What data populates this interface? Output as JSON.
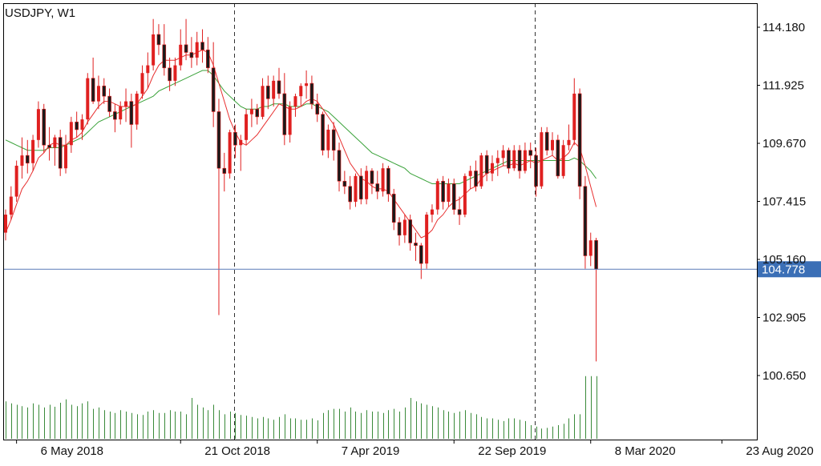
{
  "chart_data": {
    "type": "candlestick",
    "title": "USDJPY, W1",
    "symbol": "USDJPY",
    "timeframe": "W1",
    "current_price": 104.778,
    "current_price_label": "104.778",
    "price_axis": {
      "ylim": [
        99.3,
        115.38
      ],
      "ticks": [
        "114.180",
        "111.925",
        "109.670",
        "107.415",
        "105.160",
        "102.905",
        "100.650"
      ]
    },
    "time_axis": {
      "labels": [
        "6 May 2018",
        "21 Oct 2018",
        "7 Apr 2019",
        "22 Sep 2019",
        "8 Mar 2020",
        "23 Aug 2020"
      ]
    },
    "period_separators": true,
    "grid": false,
    "colors": {
      "bull_wick": "#e02020",
      "bull_body": "#e02020",
      "bear_body": "#1a1a1a",
      "ma_fast": "#e83030",
      "ma_slow": "#3aa23a",
      "volume": "#3a8a3a",
      "price_line": "#5a7ab8",
      "price_label_bg": "#3b6fb6",
      "axis": "#000000"
    },
    "series": {
      "ohlc": [
        [
          106.2,
          107.1,
          105.9,
          106.9
        ],
        [
          106.9,
          108.0,
          106.7,
          107.6
        ],
        [
          107.6,
          109.0,
          107.4,
          108.8
        ],
        [
          108.8,
          109.9,
          108.3,
          109.2
        ],
        [
          109.2,
          109.8,
          108.5,
          108.9
        ],
        [
          108.9,
          110.0,
          108.6,
          109.8
        ],
        [
          109.8,
          111.3,
          109.5,
          111.0
        ],
        [
          111.0,
          111.2,
          109.3,
          109.6
        ],
        [
          109.6,
          110.3,
          109.0,
          109.5
        ],
        [
          109.5,
          110.0,
          108.8,
          109.9
        ],
        [
          109.9,
          110.2,
          108.4,
          108.7
        ],
        [
          108.7,
          110.0,
          108.5,
          109.6
        ],
        [
          109.6,
          110.7,
          109.3,
          110.5
        ],
        [
          110.5,
          110.9,
          109.9,
          110.2
        ],
        [
          110.2,
          110.8,
          109.8,
          110.6
        ],
        [
          110.6,
          112.4,
          110.4,
          112.2
        ],
        [
          112.2,
          113.0,
          111.2,
          111.3
        ],
        [
          111.3,
          112.3,
          111.0,
          111.9
        ],
        [
          111.9,
          112.2,
          111.2,
          111.5
        ],
        [
          111.5,
          111.8,
          110.7,
          110.9
        ],
        [
          110.9,
          111.2,
          110.1,
          110.6
        ],
        [
          110.6,
          111.3,
          110.4,
          111.1
        ],
        [
          111.1,
          111.8,
          110.5,
          111.3
        ],
        [
          111.3,
          111.6,
          109.5,
          110.4
        ],
        [
          110.4,
          111.7,
          110.2,
          111.6
        ],
        [
          111.6,
          112.7,
          111.4,
          112.4
        ],
        [
          112.4,
          113.2,
          111.8,
          112.7
        ],
        [
          112.7,
          114.5,
          112.5,
          113.9
        ],
        [
          113.9,
          114.3,
          113.1,
          113.5
        ],
        [
          113.5,
          114.3,
          112.3,
          112.6
        ],
        [
          112.6,
          113.0,
          111.7,
          112.1
        ],
        [
          112.1,
          113.0,
          111.9,
          112.7
        ],
        [
          112.7,
          114.1,
          112.5,
          113.5
        ],
        [
          113.5,
          114.5,
          112.9,
          113.2
        ],
        [
          113.2,
          113.8,
          112.6,
          113.0
        ],
        [
          113.0,
          114.0,
          112.7,
          113.6
        ],
        [
          113.6,
          114.1,
          112.8,
          113.3
        ],
        [
          113.3,
          113.8,
          112.4,
          112.6
        ],
        [
          112.6,
          113.6,
          110.3,
          110.9
        ],
        [
          110.9,
          111.4,
          103.0,
          108.7
        ],
        [
          108.7,
          109.3,
          107.8,
          108.5
        ],
        [
          108.5,
          110.2,
          108.3,
          110.1
        ],
        [
          110.1,
          110.4,
          109.1,
          109.6
        ],
        [
          109.6,
          110.0,
          108.6,
          109.8
        ],
        [
          109.8,
          111.0,
          109.6,
          110.8
        ],
        [
          110.8,
          111.4,
          110.3,
          111.0
        ],
        [
          111.0,
          111.2,
          110.4,
          110.7
        ],
        [
          110.7,
          112.2,
          110.6,
          111.9
        ],
        [
          111.9,
          112.3,
          111.0,
          111.4
        ],
        [
          111.4,
          112.3,
          111.1,
          112.1
        ],
        [
          112.1,
          112.6,
          111.4,
          111.6
        ],
        [
          111.6,
          112.4,
          109.6,
          110.0
        ],
        [
          110.0,
          111.3,
          109.7,
          111.1
        ],
        [
          111.1,
          111.6,
          110.7,
          111.5
        ],
        [
          111.5,
          112.0,
          111.1,
          111.9
        ],
        [
          111.9,
          112.5,
          111.4,
          112.0
        ],
        [
          112.0,
          112.3,
          111.0,
          111.2
        ],
        [
          111.2,
          111.6,
          110.5,
          110.8
        ],
        [
          110.8,
          110.9,
          109.2,
          109.4
        ],
        [
          109.4,
          110.4,
          109.1,
          110.2
        ],
        [
          110.2,
          110.5,
          109.0,
          109.4
        ],
        [
          109.4,
          109.7,
          107.8,
          108.2
        ],
        [
          108.2,
          108.6,
          107.7,
          108.0
        ],
        [
          108.0,
          108.4,
          107.1,
          107.4
        ],
        [
          107.4,
          108.5,
          107.2,
          108.4
        ],
        [
          108.4,
          108.7,
          107.3,
          107.5
        ],
        [
          107.5,
          108.8,
          107.3,
          108.6
        ],
        [
          108.6,
          108.7,
          107.7,
          108.1
        ],
        [
          108.1,
          108.6,
          107.5,
          107.8
        ],
        [
          107.8,
          108.9,
          107.6,
          108.7
        ],
        [
          108.7,
          108.8,
          107.4,
          107.7
        ],
        [
          107.7,
          107.9,
          106.3,
          106.6
        ],
        [
          106.6,
          106.8,
          105.7,
          106.1
        ],
        [
          106.1,
          106.9,
          105.8,
          106.7
        ],
        [
          106.7,
          106.9,
          105.5,
          105.8
        ],
        [
          105.8,
          106.2,
          105.1,
          105.7
        ],
        [
          105.7,
          105.8,
          104.4,
          105.0
        ],
        [
          105.0,
          107.0,
          104.8,
          106.9
        ],
        [
          106.9,
          107.3,
          106.6,
          107.1
        ],
        [
          107.1,
          108.3,
          106.9,
          108.2
        ],
        [
          108.2,
          108.4,
          107.1,
          107.4
        ],
        [
          107.4,
          108.3,
          107.2,
          108.1
        ],
        [
          108.1,
          108.3,
          106.9,
          107.1
        ],
        [
          107.1,
          107.6,
          106.5,
          106.9
        ],
        [
          106.9,
          108.5,
          106.8,
          108.4
        ],
        [
          108.4,
          108.8,
          107.9,
          108.6
        ],
        [
          108.6,
          109.0,
          107.8,
          108.0
        ],
        [
          108.0,
          109.3,
          107.9,
          109.2
        ],
        [
          109.2,
          109.4,
          108.2,
          108.5
        ],
        [
          108.5,
          109.2,
          108.2,
          108.9
        ],
        [
          108.9,
          109.4,
          108.4,
          109.1
        ],
        [
          109.1,
          109.6,
          108.8,
          109.4
        ],
        [
          109.4,
          109.5,
          108.5,
          108.7
        ],
        [
          108.7,
          109.6,
          108.6,
          109.4
        ],
        [
          109.4,
          109.6,
          108.3,
          108.6
        ],
        [
          108.6,
          109.7,
          108.5,
          109.4
        ],
        [
          109.4,
          109.7,
          108.7,
          109.2
        ],
        [
          109.2,
          109.5,
          107.6,
          108.0
        ],
        [
          108.0,
          110.3,
          107.9,
          110.1
        ],
        [
          110.1,
          110.3,
          109.2,
          109.4
        ],
        [
          109.4,
          110.1,
          109.2,
          109.8
        ],
        [
          109.8,
          110.0,
          108.3,
          108.4
        ],
        [
          108.4,
          109.8,
          108.3,
          109.6
        ],
        [
          109.6,
          110.4,
          109.4,
          109.8
        ],
        [
          109.8,
          112.2,
          109.6,
          111.6
        ],
        [
          111.6,
          111.8,
          107.5,
          108.0
        ],
        [
          108.0,
          108.4,
          104.8,
          105.3
        ],
        [
          105.3,
          106.2,
          104.9,
          105.9
        ],
        [
          105.9,
          106.0,
          101.2,
          104.778
        ]
      ],
      "ma_fast": [
        106.2,
        106.7,
        107.3,
        107.9,
        108.2,
        108.6,
        109.1,
        109.3,
        109.6,
        109.7,
        109.6,
        109.6,
        109.8,
        109.9,
        110.1,
        110.5,
        110.8,
        111.1,
        111.3,
        111.3,
        111.2,
        111.1,
        111.1,
        111.1,
        111.2,
        111.5,
        111.8,
        112.3,
        112.7,
        112.9,
        112.9,
        112.9,
        113.0,
        113.1,
        113.1,
        113.2,
        113.3,
        113.2,
        112.7,
        112.0,
        111.3,
        110.6,
        110.1,
        109.7,
        109.6,
        109.8,
        110.0,
        110.3,
        110.6,
        110.9,
        111.2,
        111.1,
        111.0,
        111.0,
        111.1,
        111.3,
        111.4,
        111.3,
        111.0,
        110.7,
        110.4,
        109.9,
        109.4,
        108.9,
        108.6,
        108.3,
        108.2,
        108.0,
        107.9,
        107.9,
        107.8,
        107.5,
        107.2,
        106.9,
        106.6,
        106.3,
        106.0,
        106.1,
        106.3,
        106.7,
        106.9,
        107.2,
        107.4,
        107.5,
        107.7,
        107.9,
        108.0,
        108.3,
        108.5,
        108.6,
        108.7,
        108.8,
        108.8,
        108.9,
        108.8,
        108.9,
        109.0,
        108.9,
        109.0,
        109.1,
        109.2,
        109.0,
        109.1,
        109.3,
        109.7,
        109.5,
        108.8,
        108.0,
        107.2
      ],
      "ma_slow": [
        109.8,
        109.7,
        109.6,
        109.5,
        109.4,
        109.4,
        109.4,
        109.4,
        109.5,
        109.5,
        109.5,
        109.6,
        109.7,
        109.8,
        109.9,
        110.1,
        110.3,
        110.5,
        110.6,
        110.7,
        110.8,
        110.9,
        111.0,
        111.1,
        111.2,
        111.3,
        111.4,
        111.5,
        111.7,
        111.8,
        111.9,
        112.0,
        112.1,
        112.2,
        112.3,
        112.4,
        112.5,
        112.5,
        112.3,
        112.0,
        111.7,
        111.5,
        111.3,
        111.1,
        111.0,
        111.0,
        111.0,
        111.1,
        111.1,
        111.2,
        111.2,
        111.2,
        111.1,
        111.1,
        111.1,
        111.2,
        111.2,
        111.1,
        111.0,
        110.9,
        110.7,
        110.5,
        110.3,
        110.1,
        109.9,
        109.7,
        109.5,
        109.3,
        109.2,
        109.1,
        109.0,
        108.9,
        108.8,
        108.7,
        108.5,
        108.4,
        108.3,
        108.2,
        108.1,
        108.1,
        108.1,
        108.1,
        108.1,
        108.1,
        108.2,
        108.3,
        108.4,
        108.5,
        108.6,
        108.7,
        108.8,
        108.9,
        109.0,
        109.0,
        109.0,
        109.0,
        109.0,
        109.0,
        109.0,
        109.0,
        109.0,
        109.0,
        109.0,
        109.0,
        109.1,
        109.0,
        108.8,
        108.6,
        108.3
      ],
      "volume": [
        0.55,
        0.52,
        0.5,
        0.48,
        0.46,
        0.52,
        0.5,
        0.46,
        0.5,
        0.47,
        0.53,
        0.58,
        0.5,
        0.48,
        0.52,
        0.55,
        0.44,
        0.46,
        0.42,
        0.4,
        0.38,
        0.42,
        0.4,
        0.38,
        0.36,
        0.35,
        0.4,
        0.42,
        0.38,
        0.38,
        0.42,
        0.4,
        0.4,
        0.36,
        0.6,
        0.5,
        0.46,
        0.42,
        0.5,
        0.42,
        0.36,
        0.4,
        0.38,
        0.35,
        0.34,
        0.32,
        0.3,
        0.32,
        0.3,
        0.28,
        0.32,
        0.36,
        0.3,
        0.3,
        0.28,
        0.28,
        0.3,
        0.27,
        0.38,
        0.42,
        0.44,
        0.44,
        0.4,
        0.46,
        0.4,
        0.38,
        0.42,
        0.4,
        0.4,
        0.38,
        0.42,
        0.44,
        0.4,
        0.46,
        0.6,
        0.55,
        0.52,
        0.5,
        0.48,
        0.46,
        0.42,
        0.4,
        0.38,
        0.4,
        0.42,
        0.38,
        0.36,
        0.32,
        0.3,
        0.3,
        0.28,
        0.26,
        0.3,
        0.3,
        0.28,
        0.26,
        0.2,
        0.18,
        0.15,
        0.16,
        0.18,
        0.2,
        0.22,
        0.3,
        0.36,
        0.36,
        0.92,
        0.92,
        0.92
      ]
    }
  }
}
